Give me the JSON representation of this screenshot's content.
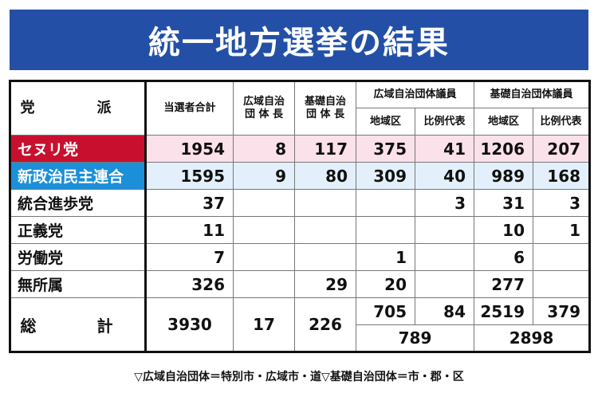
{
  "title": "統一地方選挙の結果",
  "headers": {
    "party": "党　派",
    "total_elected": "当選者合計",
    "pref_head_1": "広域自治",
    "pref_head_2": "団 体 長",
    "muni_head_1": "基礎自治",
    "muni_head_2": "団 体 長",
    "pref_members": "広域自治団体議員",
    "muni_members": "基礎自治団体議員",
    "district": "地域区",
    "proportional": "比例代表"
  },
  "rows": [
    {
      "party": "セヌリ党",
      "total": "1954",
      "pref_head": "8",
      "muni_head": "117",
      "pref_district": "375",
      "pref_prop": "41",
      "muni_district": "1206",
      "muni_prop": "207"
    },
    {
      "party": "新政治民主連合",
      "total": "1595",
      "pref_head": "9",
      "muni_head": "80",
      "pref_district": "309",
      "pref_prop": "40",
      "muni_district": "989",
      "muni_prop": "168"
    },
    {
      "party": "統合進歩党",
      "total": "37",
      "pref_head": "",
      "muni_head": "",
      "pref_district": "",
      "pref_prop": "3",
      "muni_district": "31",
      "muni_prop": "3"
    },
    {
      "party": "正義党",
      "total": "11",
      "pref_head": "",
      "muni_head": "",
      "pref_district": "",
      "pref_prop": "",
      "muni_district": "10",
      "muni_prop": "1"
    },
    {
      "party": "労働党",
      "total": "7",
      "pref_head": "",
      "muni_head": "",
      "pref_district": "1",
      "pref_prop": "",
      "muni_district": "6",
      "muni_prop": ""
    },
    {
      "party": "無所属",
      "total": "326",
      "pref_head": "",
      "muni_head": "29",
      "pref_district": "20",
      "pref_prop": "",
      "muni_district": "277",
      "muni_prop": ""
    }
  ],
  "totals": {
    "label": "総　計",
    "total": "3930",
    "pref_head": "17",
    "muni_head": "226",
    "pref_district": "705",
    "pref_prop": "84",
    "muni_district": "2519",
    "muni_prop": "379",
    "pref_members_sum": "789",
    "muni_members_sum": "2898"
  },
  "footnote": "▽広域自治団体＝特別市・広域市・道▽基礎自治団体＝市・郡・区",
  "colors": {
    "title_bg": "#2350a6",
    "senuri": "#c8102e",
    "senuri_row": "#fbe1ea",
    "npad": "#1c8fd9",
    "npad_row": "#e3f0fb"
  }
}
